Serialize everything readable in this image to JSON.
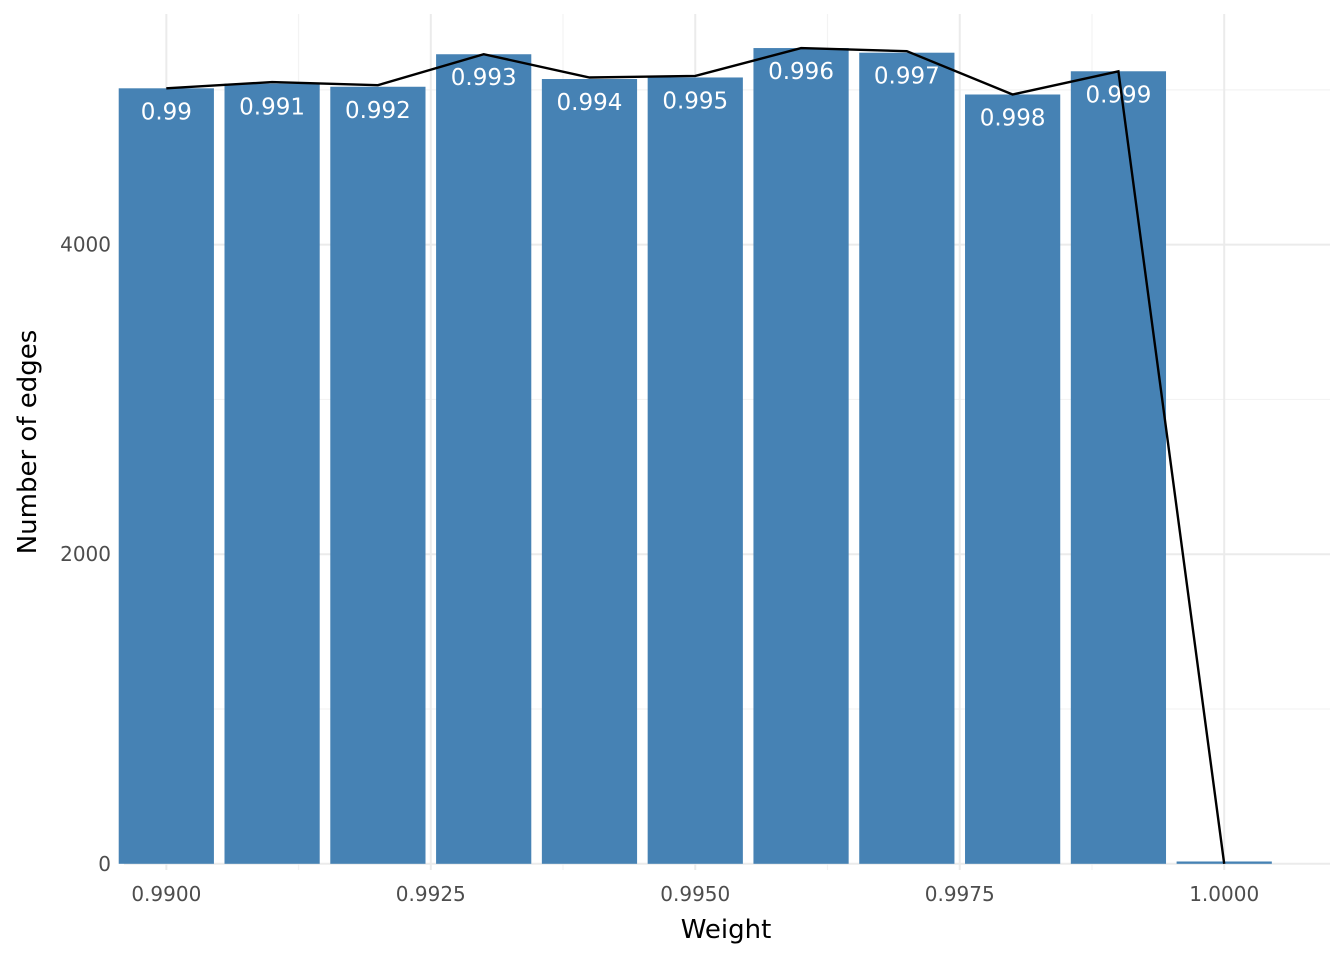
{
  "chart_data": {
    "type": "bar",
    "title": "",
    "xlabel": "Weight",
    "ylabel": "Number of edges",
    "xlim": [
      0.9896,
      1.001
    ],
    "ylim": [
      -40,
      5490
    ],
    "x_ticks": [
      0.99,
      0.9925,
      0.995,
      0.9975,
      1.0
    ],
    "x_tick_labels": [
      "0.9900",
      "0.9925",
      "0.9950",
      "0.9975",
      "1.0000"
    ],
    "x_minor_ticks": [
      0.99125,
      0.99375,
      0.99625,
      0.99875
    ],
    "y_ticks": [
      0,
      2000,
      4000
    ],
    "y_tick_labels": [
      "0",
      "2000",
      "4000"
    ],
    "y_minor_ticks": [
      1000,
      3000,
      5000
    ],
    "bar_width": 0.0009,
    "bars": [
      {
        "x": 0.99,
        "value": 5010,
        "label": "0.99"
      },
      {
        "x": 0.991,
        "value": 5040,
        "label": "0.991"
      },
      {
        "x": 0.992,
        "value": 5020,
        "label": "0.992"
      },
      {
        "x": 0.993,
        "value": 5230,
        "label": "0.993"
      },
      {
        "x": 0.994,
        "value": 5070,
        "label": "0.994"
      },
      {
        "x": 0.995,
        "value": 5080,
        "label": "0.995"
      },
      {
        "x": 0.996,
        "value": 5270,
        "label": "0.996"
      },
      {
        "x": 0.997,
        "value": 5240,
        "label": "0.997"
      },
      {
        "x": 0.998,
        "value": 4970,
        "label": "0.998"
      },
      {
        "x": 0.999,
        "value": 5120,
        "label": "0.999"
      },
      {
        "x": 1.0,
        "value": 15,
        "label": ""
      }
    ],
    "line": {
      "x": [
        0.99,
        0.991,
        0.992,
        0.993,
        0.994,
        0.995,
        0.996,
        0.997,
        0.998,
        0.999,
        1.0
      ],
      "y": [
        5010,
        5050,
        5030,
        5230,
        5080,
        5090,
        5270,
        5250,
        4970,
        5120,
        0
      ]
    },
    "grid": true,
    "legend": "none",
    "colors": {
      "bar": "#4682b4",
      "line": "#000000",
      "bar_label": "#ffffff"
    }
  }
}
